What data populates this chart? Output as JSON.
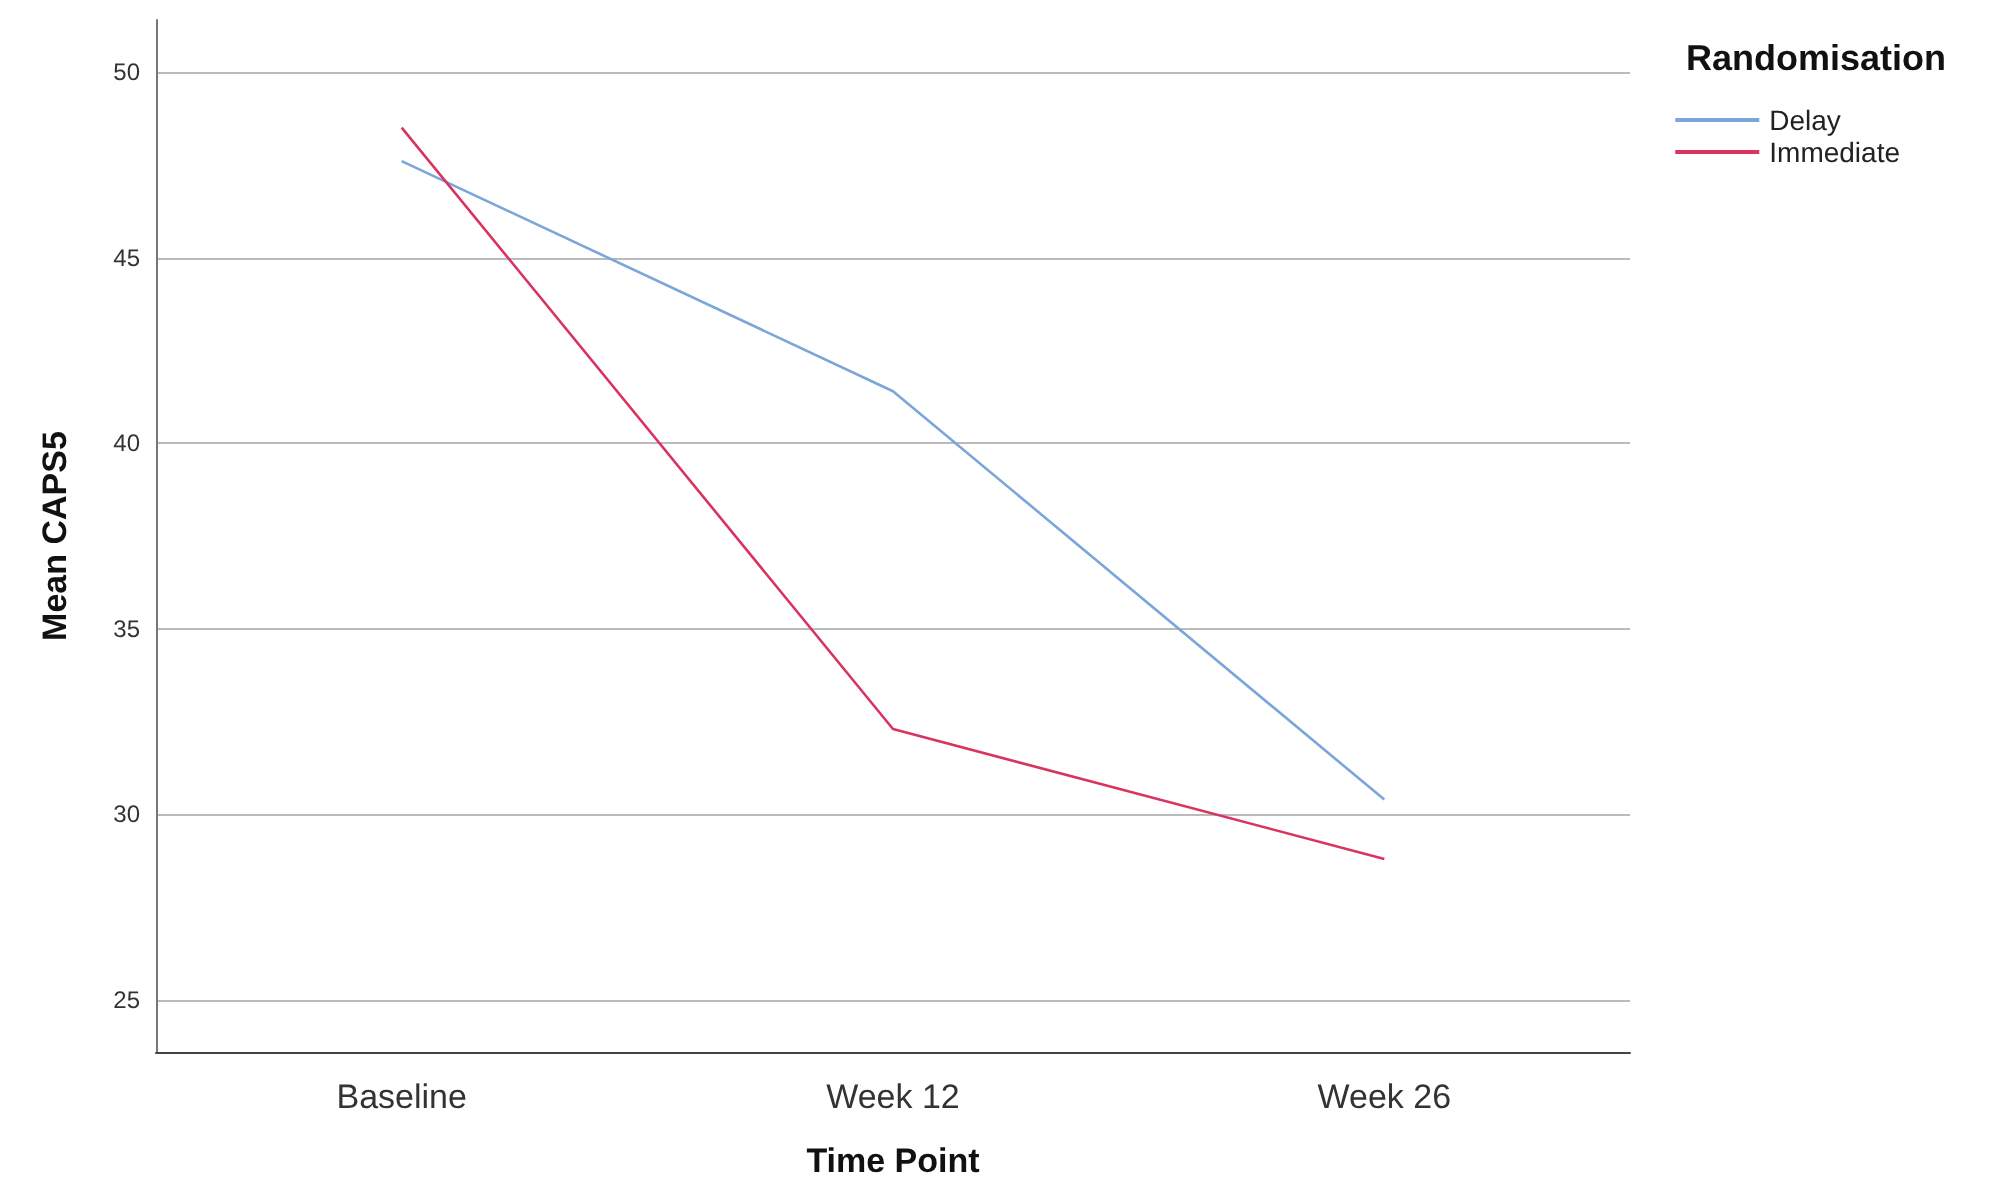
{
  "chart_data": {
    "type": "line",
    "xlabel": "Time Point",
    "ylabel": "Mean CAPS5",
    "legend_title": "Randomisation",
    "categories": [
      "Baseline",
      "Week 12",
      "Week 26"
    ],
    "series": [
      {
        "name": "Delay",
        "color": "#7aa6d9",
        "values": [
          47.6,
          41.4,
          30.4
        ]
      },
      {
        "name": "Immediate",
        "color": "#d9335f",
        "values": [
          48.5,
          32.3,
          28.8
        ]
      }
    ],
    "ylim": [
      23.6,
      51.4
    ],
    "yticks": [
      25,
      30,
      35,
      40,
      45,
      50
    ],
    "grid": "y",
    "legend": "top right",
    "marker": "none",
    "line_style": "solid"
  }
}
